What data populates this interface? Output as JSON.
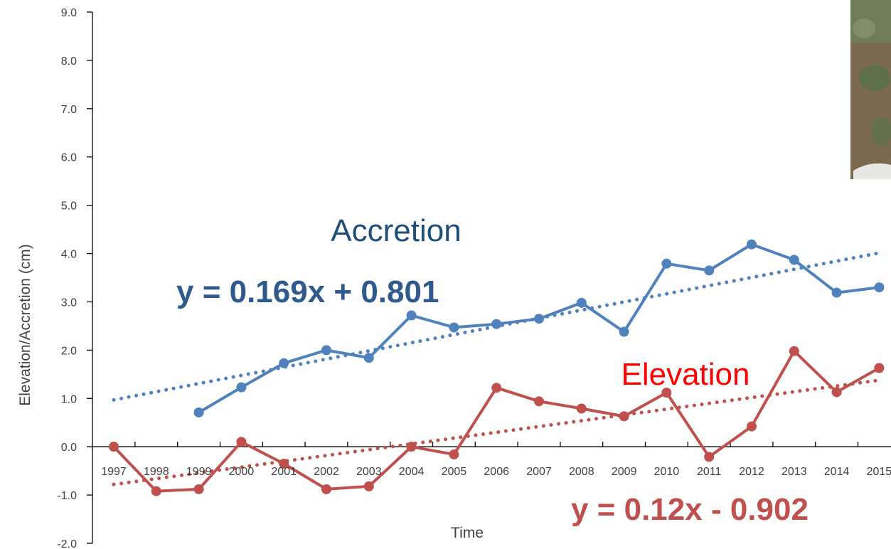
{
  "chart_data": {
    "type": "line",
    "xlabel": "Time",
    "ylabel": "Elevation/Accretion (cm)",
    "ylim": [
      -2.0,
      9.0
    ],
    "y_ticks": [
      "-2.0",
      "-1.0",
      "0.0",
      "1.0",
      "2.0",
      "3.0",
      "4.0",
      "5.0",
      "6.0",
      "7.0",
      "8.0",
      "9.0"
    ],
    "categories": [
      "1997",
      "1998",
      "1999",
      "2000",
      "2001",
      "2002",
      "2003",
      "2004",
      "2005",
      "2006",
      "2007",
      "2008",
      "2009",
      "2010",
      "2011",
      "2012",
      "2013",
      "2014",
      "2015"
    ],
    "grid": false,
    "series": [
      {
        "name": "Accretion",
        "color": "#4F81BD",
        "values": [
          null,
          null,
          0.71,
          1.23,
          1.73,
          2.0,
          1.84,
          2.72,
          2.47,
          2.54,
          2.65,
          2.98,
          2.38,
          3.79,
          3.65,
          4.19,
          3.87,
          3.19,
          3.3
        ],
        "trendline": {
          "equation": "y = 0.169x + 0.801",
          "slope": 0.169,
          "intercept": 0.801,
          "style": "dotted"
        },
        "label_color": "#1F4E79",
        "equation_color": "#2E5A8E"
      },
      {
        "name": "Elevation",
        "color": "#C0504D",
        "values": [
          0.0,
          -0.92,
          -0.88,
          0.1,
          -0.35,
          -0.88,
          -0.82,
          0.0,
          -0.16,
          1.22,
          0.94,
          0.79,
          0.63,
          1.12,
          -0.21,
          0.42,
          1.98,
          1.13,
          1.63
        ],
        "trendline": {
          "equation": "y = 0.12x - 0.902",
          "slope": 0.12,
          "intercept": -0.902,
          "style": "dotted"
        },
        "label_color": "#FF0000",
        "equation_color": "#C0504D"
      }
    ]
  },
  "labels": {
    "accretion": "Accretion",
    "elevation": "Elevation",
    "accretion_equation": "y = 0.169x + 0.801",
    "elevation_equation": "y = 0.12x - 0.902"
  },
  "photo": {
    "description_icon": "marsh-photo"
  }
}
